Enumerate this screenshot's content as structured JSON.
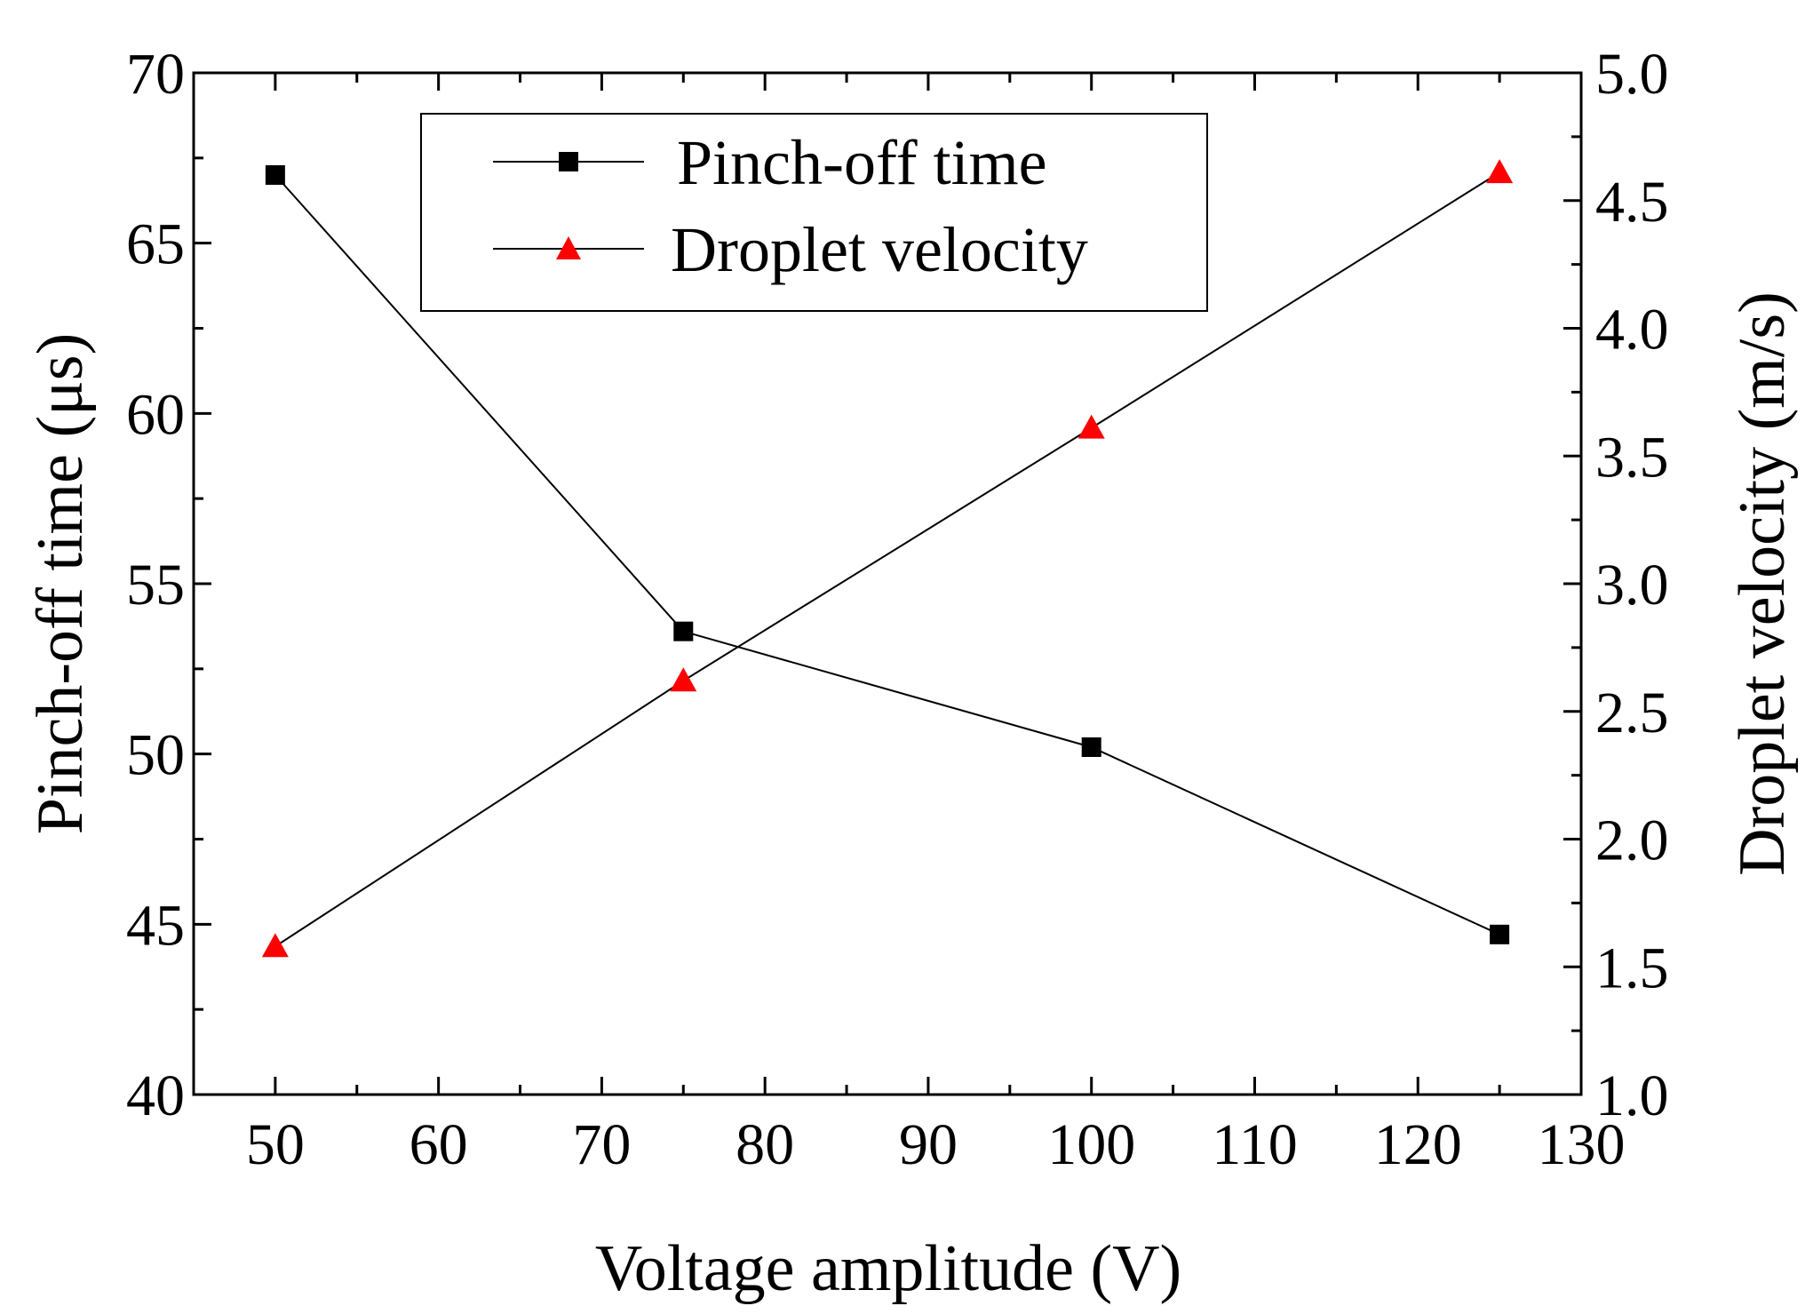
{
  "chart_data": {
    "type": "line",
    "title": "",
    "xlabel": "Voltage amplitude (V)",
    "ylabel_left": "Pinch-off time (μs)",
    "ylabel_right": "Droplet velocity (m/s)",
    "x": [
      50,
      75,
      100,
      125
    ],
    "xlim": [
      45,
      130
    ],
    "ylim_left": [
      40,
      70
    ],
    "ylim_right": [
      1.0,
      5.0
    ],
    "x_ticks": [
      "50",
      "60",
      "70",
      "80",
      "90",
      "100",
      "110",
      "120",
      "130"
    ],
    "y_ticks_left": [
      "40",
      "45",
      "50",
      "55",
      "60",
      "65",
      "70"
    ],
    "y_ticks_right": [
      "1.0",
      "1.5",
      "2.0",
      "2.5",
      "3.0",
      "3.5",
      "4.0",
      "4.5",
      "5.0"
    ],
    "grid": false,
    "legend_position": "top-center",
    "series": [
      {
        "name": "Pinch-off time",
        "axis": "left",
        "marker": "square",
        "color": "#000000",
        "values": [
          67.0,
          53.6,
          50.2,
          44.7
        ]
      },
      {
        "name": "Droplet velocity",
        "axis": "right",
        "marker": "triangle",
        "color": "#ff0000",
        "values": [
          1.58,
          2.62,
          3.61,
          4.61
        ]
      }
    ]
  }
}
